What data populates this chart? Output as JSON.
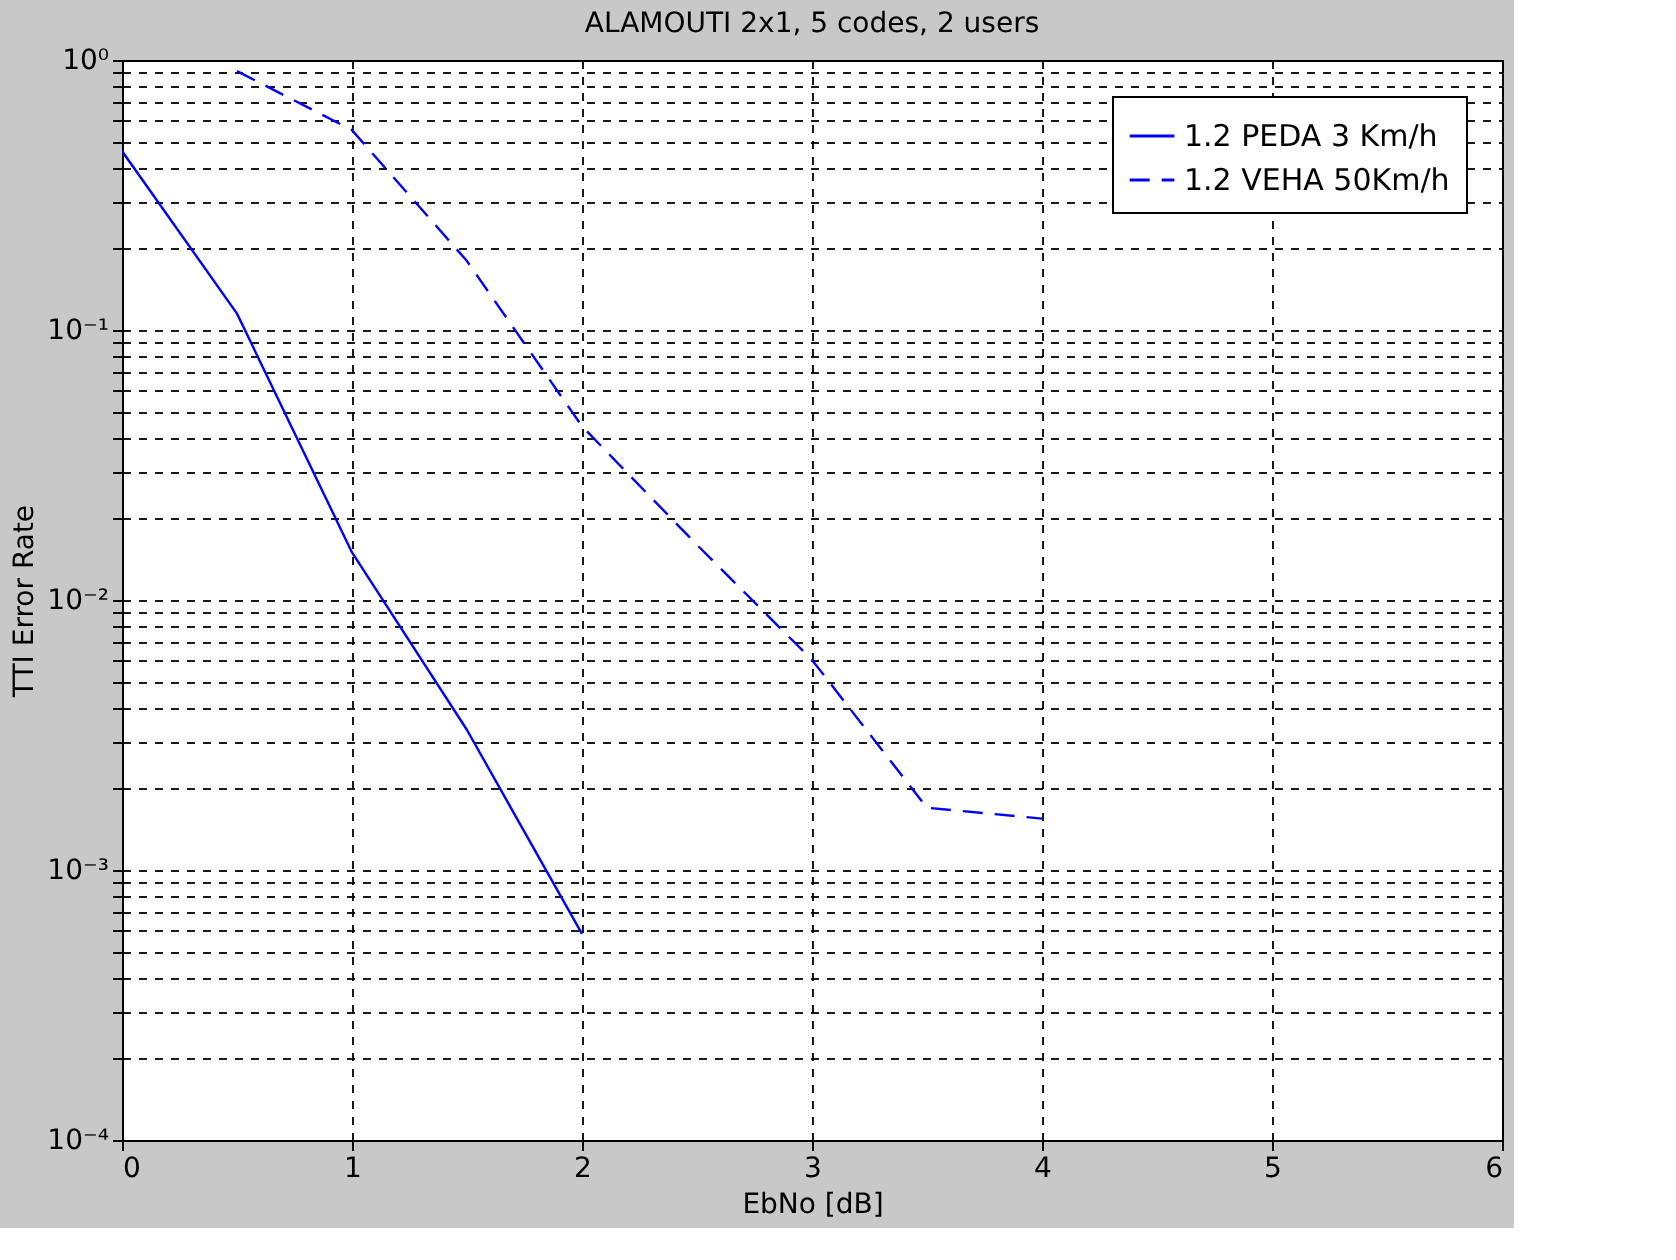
{
  "chart_data": {
    "type": "line",
    "title": "ALAMOUTI 2x1, 5 codes, 2 users",
    "xlabel": "EbNo [dB]",
    "ylabel": "TTI Error Rate",
    "x": [
      0,
      0.5,
      1,
      1.5,
      2
    ],
    "series": [
      {
        "name": "1.2 PEDA 3 Km/h",
        "color": "#0000ff",
        "line_style": "solid",
        "values": [
          0.46,
          0.115,
          0.015,
          0.0033,
          0.00058
        ]
      },
      {
        "name": "1.2 VEHA 50Km/h",
        "color": "#0000ff",
        "line_style": "dashed",
        "x": [
          0.5,
          1,
          1.5,
          2,
          2.5,
          3,
          3.5,
          4
        ],
        "values": [
          0.91,
          0.55,
          0.18,
          0.044,
          0.016,
          0.006,
          0.0017,
          0.00155
        ]
      }
    ],
    "log": "y",
    "xlim": [
      0,
      6
    ],
    "xticks": [
      0,
      1,
      2,
      3,
      4,
      5,
      6
    ],
    "ylim": [
      0.0001,
      1
    ],
    "yticks": [
      {
        "value": 0.0001,
        "label": "10⁻⁴"
      },
      {
        "value": 0.0002,
        "label": null
      },
      {
        "value": 0.0003,
        "label": null
      },
      {
        "value": 0.0004,
        "label": null
      },
      {
        "value": 0.0005,
        "label": null
      },
      {
        "value": 0.0006,
        "label": null
      },
      {
        "value": 0.0007,
        "label": null
      },
      {
        "value": 0.0008,
        "label": null
      },
      {
        "value": 0.0009,
        "label": null
      },
      {
        "value": 0.001,
        "label": "10⁻³"
      },
      {
        "value": 0.002,
        "label": null
      },
      {
        "value": 0.003,
        "label": null
      },
      {
        "value": 0.004,
        "label": null
      },
      {
        "value": 0.005,
        "label": null
      },
      {
        "value": 0.006,
        "label": null
      },
      {
        "value": 0.007,
        "label": null
      },
      {
        "value": 0.008,
        "label": null
      },
      {
        "value": 0.009,
        "label": null
      },
      {
        "value": 0.01,
        "label": "10⁻²"
      },
      {
        "value": 0.02,
        "label": null
      },
      {
        "value": 0.03,
        "label": null
      },
      {
        "value": 0.04,
        "label": null
      },
      {
        "value": 0.05,
        "label": null
      },
      {
        "value": 0.06,
        "label": null
      },
      {
        "value": 0.07,
        "label": null
      },
      {
        "value": 0.08,
        "label": null
      },
      {
        "value": 0.09,
        "label": null
      },
      {
        "value": 0.1,
        "label": "10⁻¹"
      },
      {
        "value": 0.2,
        "label": null
      },
      {
        "value": 0.3,
        "label": null
      },
      {
        "value": 0.4,
        "label": null
      },
      {
        "value": 0.5,
        "label": null
      },
      {
        "value": 0.6,
        "label": null
      },
      {
        "value": 0.7,
        "label": null
      },
      {
        "value": 0.8,
        "label": null
      },
      {
        "value": 0.9,
        "label": null
      },
      {
        "value": 1,
        "label": "10⁰"
      }
    ],
    "grid": true,
    "legend": "top right"
  }
}
